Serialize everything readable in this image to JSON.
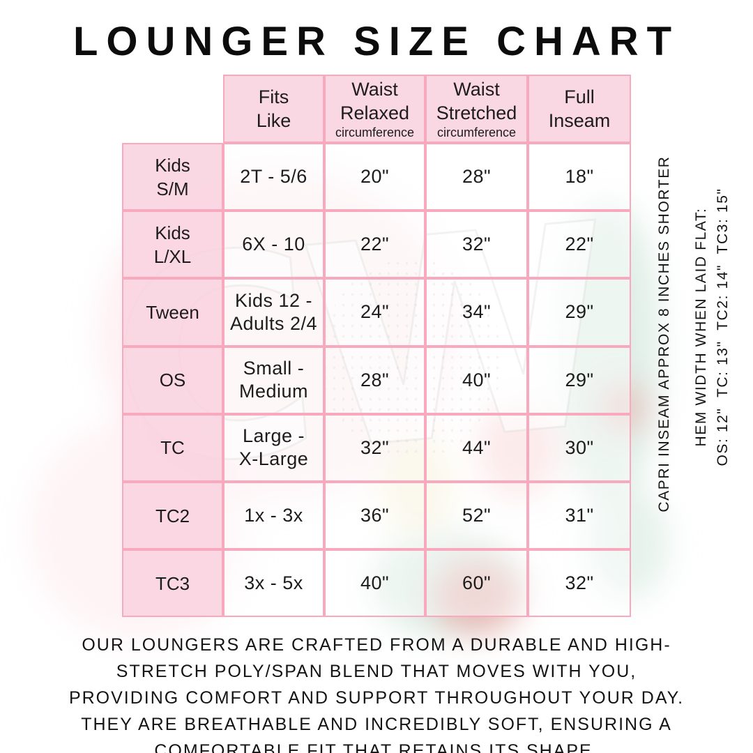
{
  "title": "LOUNGER SIZE CHART",
  "watermark": {
    "text": "CW"
  },
  "table": {
    "headers": [
      {
        "title": "Fits\nLike",
        "sub": ""
      },
      {
        "title": "Waist\nRelaxed",
        "sub": "circumference"
      },
      {
        "title": "Waist\nStretched",
        "sub": "circumference"
      },
      {
        "title": "Full\nInseam",
        "sub": ""
      }
    ],
    "rows": [
      {
        "label": "Kids\nS/M",
        "fits_like": "2T - 5/6",
        "waist_relaxed": "20\"",
        "waist_stretched": "28\"",
        "full_inseam": "18\""
      },
      {
        "label": "Kids\nL/XL",
        "fits_like": "6X - 10",
        "waist_relaxed": "22\"",
        "waist_stretched": "32\"",
        "full_inseam": "22\""
      },
      {
        "label": "Tween",
        "fits_like": "Kids 12 -\nAdults 2/4",
        "waist_relaxed": "24\"",
        "waist_stretched": "34\"",
        "full_inseam": "29\""
      },
      {
        "label": "OS",
        "fits_like": "Small -\nMedium",
        "waist_relaxed": "28\"",
        "waist_stretched": "40\"",
        "full_inseam": "29\""
      },
      {
        "label": "TC",
        "fits_like": "Large -\nX-Large",
        "waist_relaxed": "32\"",
        "waist_stretched": "44\"",
        "full_inseam": "30\""
      },
      {
        "label": "TC2",
        "fits_like": "1x - 3x",
        "waist_relaxed": "36\"",
        "waist_stretched": "52\"",
        "full_inseam": "31\""
      },
      {
        "label": "TC3",
        "fits_like": "3x - 5x",
        "waist_relaxed": "40\"",
        "waist_stretched": "60\"",
        "full_inseam": "32\""
      }
    ]
  },
  "side_notes": {
    "capri": "CAPRI INSEAM APPROX 8 INCHES SHORTER",
    "hem_title": "HEM WIDTH WHEN LAID FLAT:",
    "hem_values": "OS: 12\"  TC: 13\"  TC2: 14\"  TC3: 15\""
  },
  "footer": {
    "text": "OUR LOUNGERS ARE CRAFTED FROM A DURABLE AND HIGH-\nSTRETCH POLY/SPAN BLEND THAT MOVES WITH YOU,\nPROVIDING COMFORT AND SUPPORT THROUGHOUT YOUR DAY.\nTHEY ARE BREATHABLE AND INCREDIBLY SOFT, ENSURING A\nCOMFORTABLE FIT THAT RETAINS ITS SHAPE."
  },
  "colors": {
    "grid_pink": "#F8A9BE",
    "cell_pink": "#FAD4E0",
    "text": "#1C1C1C"
  }
}
